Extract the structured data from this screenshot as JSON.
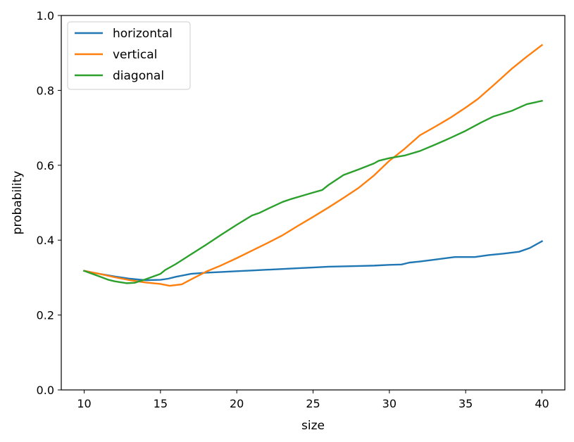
{
  "chart_data": {
    "type": "line",
    "title": "",
    "xlabel": "size",
    "ylabel": "probability",
    "xlim": [
      8.5,
      41.5
    ],
    "ylim": [
      0.0,
      1.0
    ],
    "xticks": [
      10,
      15,
      20,
      25,
      30,
      35,
      40
    ],
    "xtick_labels": [
      "10",
      "15",
      "20",
      "25",
      "30",
      "35",
      "40"
    ],
    "yticks": [
      0.0,
      0.2,
      0.4,
      0.6,
      0.8,
      1.0
    ],
    "ytick_labels": [
      "0.0",
      "0.2",
      "0.4",
      "0.6",
      "0.8",
      "1.0"
    ],
    "grid": false,
    "legend_position": "upper-left",
    "series": [
      {
        "name": "horizontal",
        "color": "#1f77b4",
        "x": [
          10,
          11,
          12,
          13,
          14,
          15,
          15.5,
          16,
          17,
          18,
          19,
          20,
          21,
          22,
          23,
          24,
          25,
          26,
          27,
          28,
          29,
          30,
          30.8,
          31.3,
          32,
          33,
          34.3,
          35,
          35.6,
          36.5,
          37.5,
          38.5,
          39.2,
          40
        ],
        "values": [
          0.318,
          0.31,
          0.303,
          0.297,
          0.293,
          0.294,
          0.297,
          0.302,
          0.31,
          0.313,
          0.315,
          0.317,
          0.319,
          0.321,
          0.323,
          0.325,
          0.327,
          0.329,
          0.33,
          0.331,
          0.332,
          0.334,
          0.335,
          0.34,
          0.343,
          0.348,
          0.355,
          0.355,
          0.355,
          0.36,
          0.364,
          0.369,
          0.379,
          0.397
        ]
      },
      {
        "name": "vertical",
        "color": "#ff7f0e",
        "x": [
          10,
          11,
          12,
          13,
          14,
          15,
          15.6,
          16.4,
          17,
          18,
          19,
          20,
          21,
          22,
          23,
          24,
          25,
          26,
          27,
          28,
          29,
          30,
          31,
          32,
          33,
          34,
          35,
          35.8,
          37,
          38,
          39,
          40
        ],
        "values": [
          0.318,
          0.31,
          0.301,
          0.293,
          0.287,
          0.283,
          0.278,
          0.282,
          0.295,
          0.316,
          0.333,
          0.352,
          0.372,
          0.392,
          0.413,
          0.438,
          0.462,
          0.487,
          0.513,
          0.54,
          0.573,
          0.612,
          0.644,
          0.68,
          0.703,
          0.727,
          0.754,
          0.777,
          0.82,
          0.857,
          0.89,
          0.921
        ]
      },
      {
        "name": "diagonal",
        "color": "#2ca02c",
        "x": [
          10,
          11,
          11.6,
          12,
          12.8,
          13.3,
          14,
          15,
          15.3,
          16,
          17,
          18,
          19,
          20,
          21,
          21.5,
          22,
          23,
          23.5,
          24,
          25,
          25.6,
          26,
          27,
          28,
          29,
          29.3,
          30,
          31,
          32,
          33,
          34,
          35,
          36,
          36.8,
          37.2,
          38,
          39,
          40
        ],
        "values": [
          0.318,
          0.303,
          0.294,
          0.29,
          0.285,
          0.286,
          0.295,
          0.31,
          0.32,
          0.336,
          0.362,
          0.388,
          0.415,
          0.441,
          0.466,
          0.473,
          0.483,
          0.502,
          0.509,
          0.515,
          0.527,
          0.534,
          0.547,
          0.574,
          0.589,
          0.605,
          0.612,
          0.619,
          0.626,
          0.638,
          0.655,
          0.673,
          0.692,
          0.714,
          0.73,
          0.735,
          0.745,
          0.763,
          0.772
        ]
      }
    ]
  }
}
